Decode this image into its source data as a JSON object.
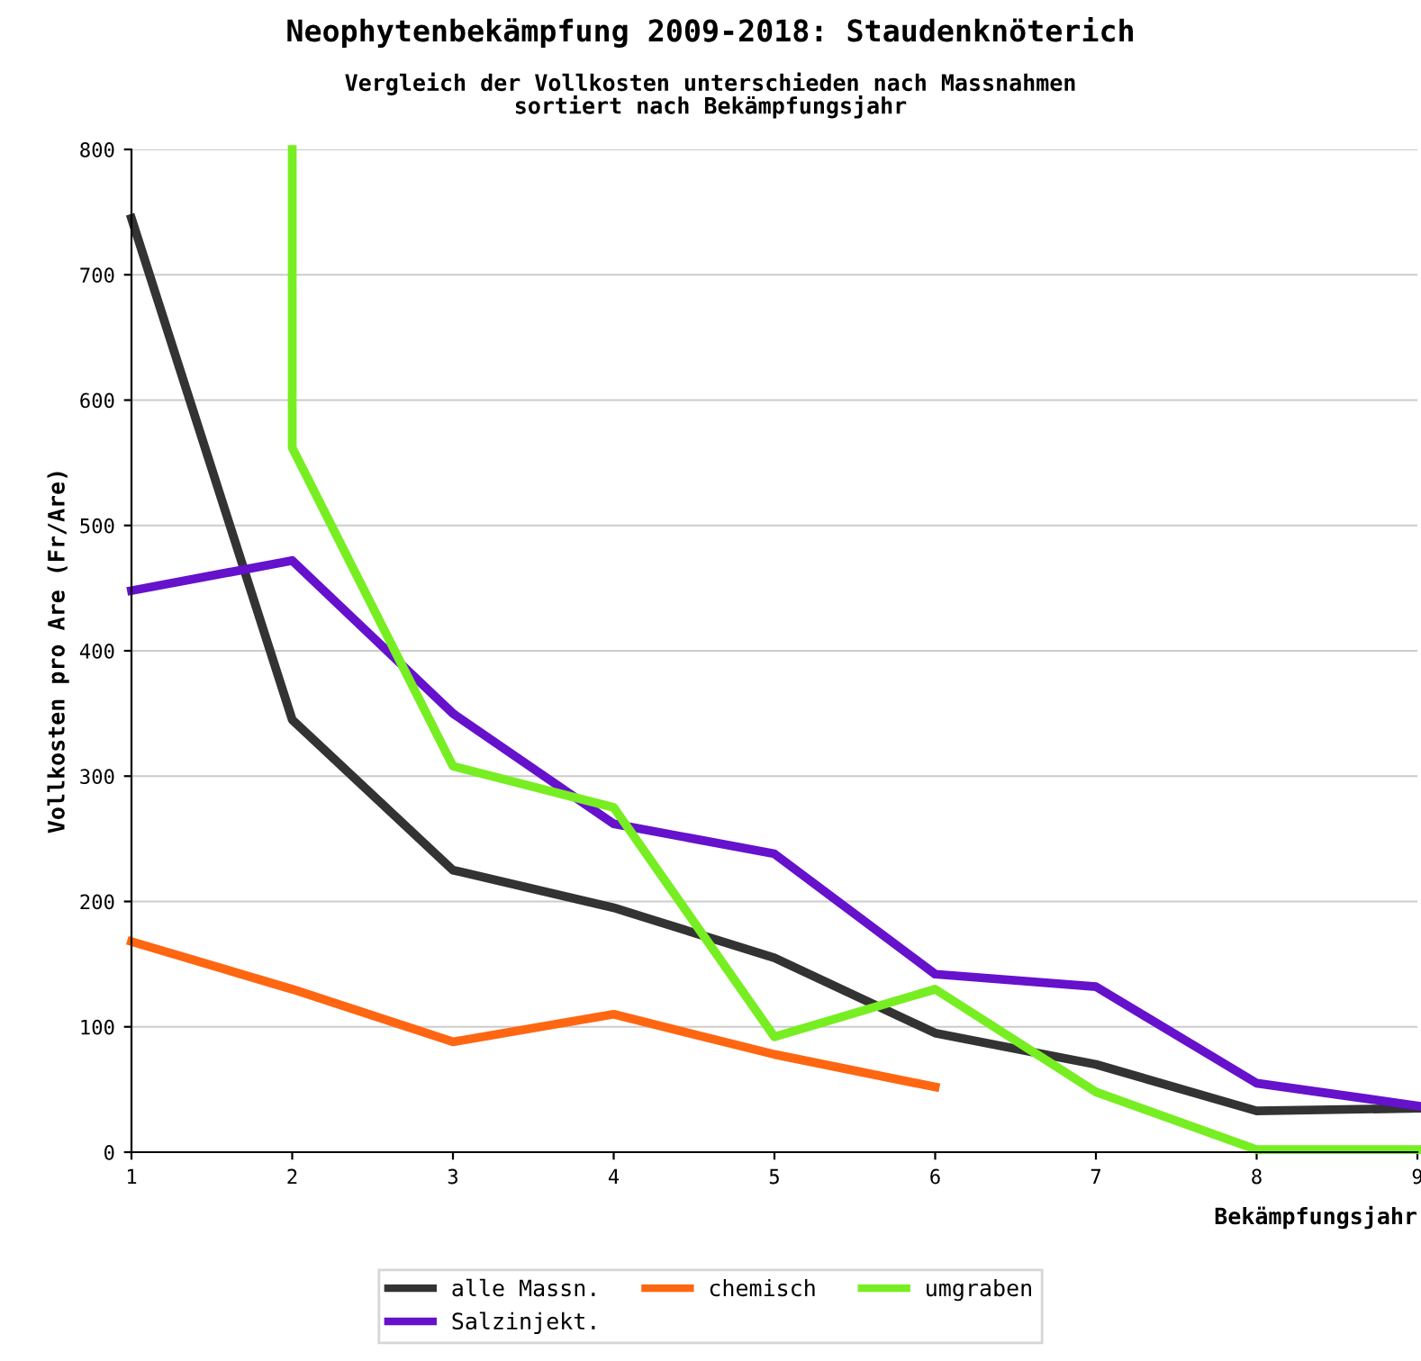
{
  "chart_data": {
    "type": "line",
    "title": "Neophytenbekämpfung 2009-2018: Staudenknöterich",
    "subtitle": "Vergleich der Vollkosten unterschieden nach Massnahmen\nsortiert nach Bekämpfungsjahr",
    "xlabel": "Bekämpfungsjahr",
    "ylabel": "Vollkosten pro Are (Fr/Are)",
    "x": [
      1,
      2,
      3,
      4,
      5,
      6,
      7,
      8,
      9
    ],
    "series": [
      {
        "name": "alle Massn.",
        "color": "#333333",
        "values": [
          745,
          345,
          225,
          195,
          155,
          95,
          70,
          33,
          35
        ]
      },
      {
        "name": "Salzinjekt.",
        "color": "#6611cc",
        "values": [
          448,
          472,
          350,
          262,
          238,
          142,
          132,
          55,
          37
        ]
      },
      {
        "name": "chemisch",
        "color": "#ff6611",
        "values": [
          168,
          130,
          88,
          110,
          78,
          52,
          null,
          null,
          null
        ]
      },
      {
        "name": "umgraben",
        "color": "#77ee22",
        "x": [
          2,
          2,
          3,
          4,
          5,
          6,
          7,
          8,
          9
        ],
        "values": [
          800,
          562,
          308,
          275,
          92,
          130,
          48,
          2,
          2
        ]
      }
    ],
    "xlim": [
      1,
      9
    ],
    "ylim": [
      0,
      800
    ],
    "xticks": [
      1,
      2,
      3,
      4,
      5,
      6,
      7,
      8,
      9
    ],
    "yticks": [
      0,
      100,
      200,
      300,
      400,
      500,
      600,
      700,
      800
    ],
    "grid": "y",
    "legend": "bottom",
    "marker": "none",
    "line_style": "solid"
  }
}
